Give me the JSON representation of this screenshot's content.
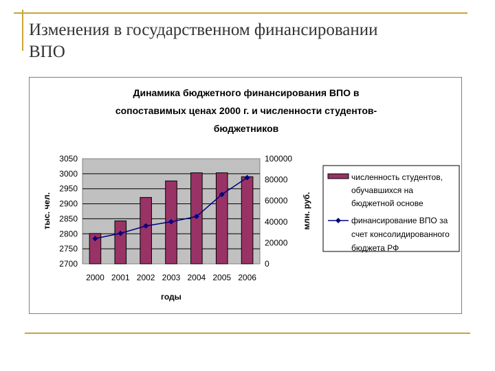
{
  "slide": {
    "title_line1": "Изменения в государственном финансировании",
    "title_line2": "ВПО"
  },
  "colors": {
    "accent": "#c9a437",
    "bar": "#993366",
    "line": "#000080",
    "plot_bg": "#c0c0c0"
  },
  "chart_data": {
    "type": "bar",
    "title_lines": [
      "Динамика бюджетного финансирования ВПО в",
      "сопоставимых ценах 2000 г. и численности студентов-",
      "бюджетников"
    ],
    "xlabel": "годы",
    "ylabel": "тыс. чел.",
    "y2label": "млн. руб.",
    "categories": [
      "2000",
      "2001",
      "2002",
      "2003",
      "2004",
      "2005",
      "2006"
    ],
    "ylim": [
      2700,
      3050
    ],
    "yticks": [
      "3050",
      "3000",
      "2950",
      "2900",
      "2850",
      "2800",
      "2750",
      "2700"
    ],
    "y2lim": [
      0,
      100000
    ],
    "y2ticks": [
      "100000",
      "80000",
      "60000",
      "40000",
      "20000",
      "0"
    ],
    "grid": true,
    "legend_position": "right",
    "series": [
      {
        "name": "численность студентов, обучавшихся на бюджетной основе",
        "name_lines": [
          "численность студентов,",
          "обучавшихся на",
          "бюджетной основе"
        ],
        "type": "bar",
        "axis": "left",
        "values": [
          2801,
          2843,
          2921,
          2976,
          3003,
          3003,
          2990
        ]
      },
      {
        "name": "финансирование ВПО за счет консолидированного бюджета РФ",
        "name_lines": [
          "финансирование ВПО за",
          "счет консолидированного",
          "бюджета РФ"
        ],
        "type": "line",
        "axis": "right",
        "values": [
          24000,
          29000,
          36000,
          40000,
          45000,
          66000,
          82000
        ]
      }
    ]
  }
}
